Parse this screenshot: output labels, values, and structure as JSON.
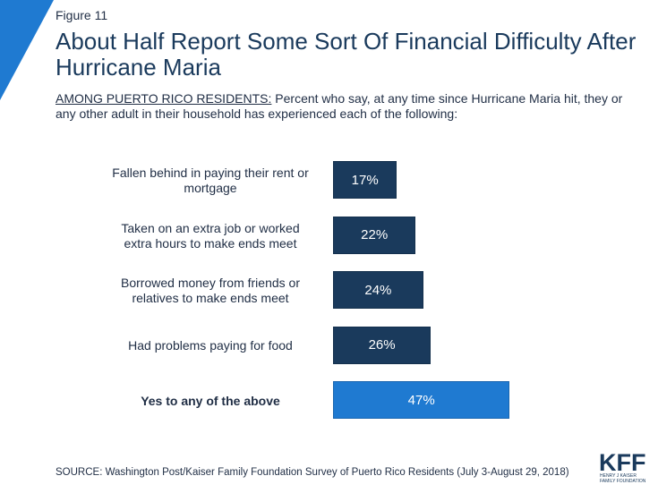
{
  "figure_label": "Figure 11",
  "title": "About Half Report Some Sort Of Financial Difficulty After Hurricane Maria",
  "subtitle_lead": "AMONG PUERTO RICO RESIDENTS:",
  "subtitle_rest": " Percent who say, at any time since Hurricane Maria hit, they or any other adult in their household has experienced each of the following:",
  "source": "SOURCE: Washington Post/Kaiser Family Foundation Survey of Puerto Rico Residents (July 3-August 29, 2018)",
  "logo": {
    "main": "KFF",
    "line1": "HENRY J KAISER",
    "line2": "FAMILY FOUNDATION"
  },
  "colors": {
    "bar": "#1a3a5c",
    "highlight_bar": "#1f7ad1",
    "accent": "#1f7ad1"
  },
  "chart_data": {
    "type": "bar",
    "orientation": "horizontal",
    "categories": [
      "Fallen behind in paying their rent or mortgage",
      "Taken on an extra job or worked extra hours to make ends meet",
      "Borrowed money from friends or relatives to make ends meet",
      "Had problems paying for food",
      "Yes to any of the above"
    ],
    "values": [
      17,
      22,
      24,
      26,
      47
    ],
    "value_labels": [
      "17%",
      "22%",
      "24%",
      "26%",
      "47%"
    ],
    "highlighted_category": "Yes to any of the above",
    "xlim": [
      0,
      100
    ],
    "grid": false,
    "legend": "none"
  }
}
